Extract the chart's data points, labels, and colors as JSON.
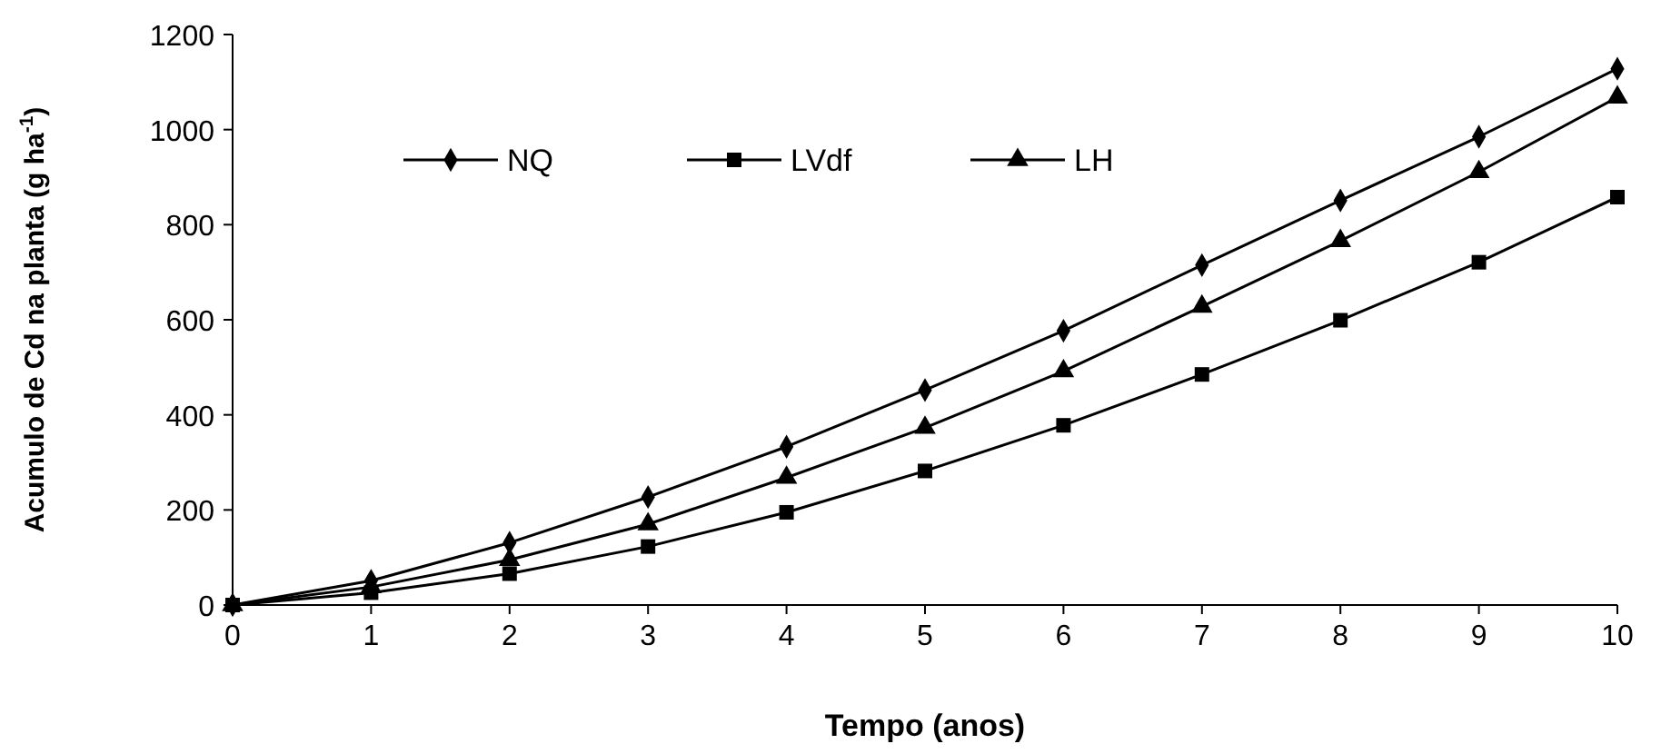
{
  "chart_data": {
    "type": "line",
    "xlabel": "Tempo (anos)",
    "ylabel": "Acumulo de Cd na planta (g ha$^{-1}$)",
    "x": [
      0,
      1,
      2,
      3,
      4,
      5,
      6,
      7,
      8,
      9,
      10
    ],
    "series": [
      {
        "name": "NQ",
        "color": "#000000",
        "marker": "diamond",
        "values": [
          0,
          51,
          131,
          227,
          333,
          452,
          577,
          715,
          851,
          985,
          1128
        ]
      },
      {
        "name": "LVdf",
        "color": "#000000",
        "marker": "square",
        "values": [
          0,
          26,
          66,
          123,
          195,
          282,
          378,
          485,
          599,
          721,
          858
        ]
      },
      {
        "name": "LH",
        "color": "#000000",
        "marker": "triangle",
        "values": [
          0,
          38,
          95,
          170,
          268,
          373,
          492,
          628,
          766,
          911,
          1068
        ]
      }
    ],
    "xlim": [
      0,
      10
    ],
    "xticks": [
      0,
      1,
      2,
      3,
      4,
      5,
      6,
      7,
      8,
      9,
      10
    ],
    "ylim": [
      0,
      1200
    ],
    "yticks": [
      0,
      200,
      400,
      600,
      800,
      1000,
      1200
    ],
    "grid": false,
    "legend": "top",
    "line_style": "solid"
  }
}
